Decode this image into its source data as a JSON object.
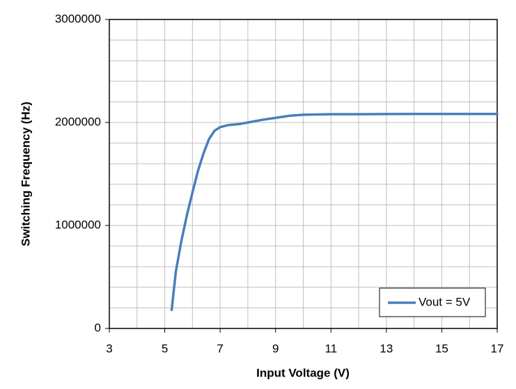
{
  "chart_data": {
    "type": "line",
    "xlabel": "Input Voltage (V)",
    "ylabel": "Switching Frequency (Hz)",
    "x": [
      5.25,
      5.4,
      5.6,
      5.8,
      6.0,
      6.2,
      6.4,
      6.6,
      6.8,
      7.0,
      7.3,
      7.7,
      8.0,
      8.5,
      9.0,
      9.5,
      10.0,
      11.0,
      12.0,
      13.0,
      14.0,
      15.0,
      16.0,
      17.0
    ],
    "series": [
      {
        "name": "Vout = 5V",
        "color": "#4a7ebb",
        "values": [
          180000,
          550000,
          850000,
          1100000,
          1320000,
          1530000,
          1700000,
          1840000,
          1920000,
          1955000,
          1975000,
          1985000,
          2000000,
          2025000,
          2045000,
          2065000,
          2075000,
          2080000,
          2080000,
          2082000,
          2083000,
          2083000,
          2083000,
          2083000
        ]
      }
    ],
    "xlim": [
      3,
      17
    ],
    "xticks": [
      3,
      5,
      7,
      9,
      11,
      13,
      15,
      17
    ],
    "x_minor_grid": [
      4,
      6,
      8,
      10,
      12,
      14,
      16
    ],
    "ylim": [
      0,
      3000000
    ],
    "yticks": [
      0,
      1000000,
      2000000,
      3000000
    ],
    "y_minor_grid": [
      200000,
      400000,
      600000,
      800000,
      1200000,
      1400000,
      1600000,
      1800000,
      2200000,
      2400000,
      2600000,
      2800000
    ],
    "grid": true,
    "legend": "lower right"
  }
}
